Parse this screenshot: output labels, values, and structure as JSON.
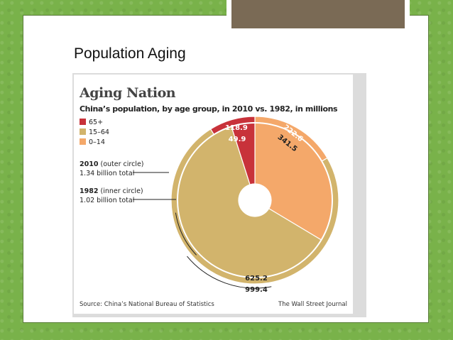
{
  "slide": {
    "title": "Population Aging"
  },
  "chart_data": {
    "type": "pie",
    "title": "Aging Nation",
    "subtitle": "China’s population, by age group, in 2010 vs. 1982, in millions",
    "categories": [
      "65+",
      "15–64",
      "0–14"
    ],
    "colors": {
      "65+": "#c8323a",
      "15–64": "#d2b46c",
      "0–14": "#f4a86a"
    },
    "series": [
      {
        "name": "2010",
        "values": [
          118.9,
          999.4,
          222.6
        ],
        "labels": [
          "118.9",
          "999.4",
          "222.6"
        ]
      },
      {
        "name": "1982",
        "values": [
          49.9,
          625.2,
          341.5
        ],
        "labels": [
          "49.9",
          "625.2",
          "341.5"
        ]
      }
    ],
    "notes": [
      {
        "year": "2010",
        "desc": "(outer circle)",
        "total": "1.34 billion total"
      },
      {
        "year": "1982",
        "desc": "(inner circle)",
        "total": "1.02 billion total"
      }
    ],
    "source": "Source: China’s National Bureau of Statistics",
    "credit": "The Wall Street Journal"
  }
}
